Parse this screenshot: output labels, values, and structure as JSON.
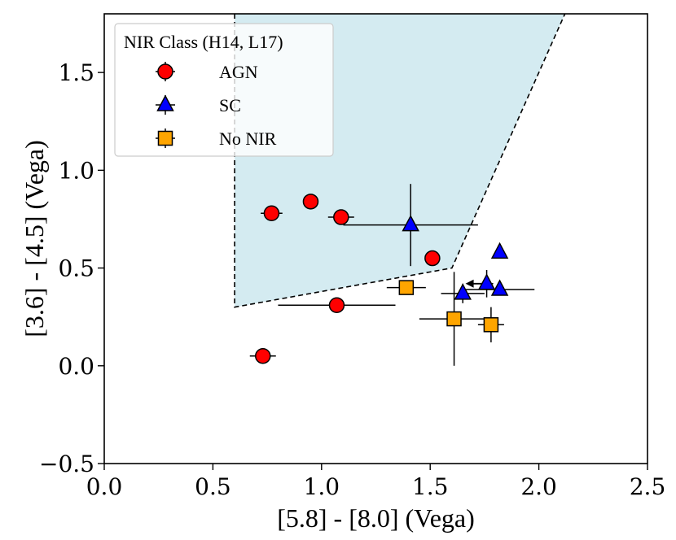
{
  "chart_data": {
    "type": "scatter",
    "title": "",
    "xlabel": "[5.8] - [8.0] (Vega)",
    "ylabel": "[3.6] - [4.5] (Vega)",
    "xlim": [
      0.0,
      2.5
    ],
    "ylim": [
      -0.5,
      1.8
    ],
    "xticks": [
      0.0,
      0.5,
      1.0,
      1.5,
      2.0,
      2.5
    ],
    "xtick_labels": [
      "0.0",
      "0.5",
      "1.0",
      "1.5",
      "2.0",
      "2.5"
    ],
    "yticks": [
      -0.5,
      0.0,
      0.5,
      1.0,
      1.5
    ],
    "ytick_labels": [
      "−0.5",
      "0.0",
      "0.5",
      "1.0",
      "1.5"
    ],
    "grid": false,
    "wedge": {
      "description": "AGN selection region (Stern et al.)",
      "fill": "#d4ebf1",
      "vertices": [
        [
          0.6,
          1.8
        ],
        [
          0.6,
          0.3
        ],
        [
          1.6,
          0.5
        ],
        [
          2.12,
          1.8
        ]
      ]
    },
    "legend": {
      "title": "NIR Class (H14, L17)",
      "placement": "top-left",
      "entries": [
        {
          "label": "AGN",
          "marker": "circle",
          "color": "#ff0000"
        },
        {
          "label": "SC",
          "marker": "triangle",
          "color": "#0000ff"
        },
        {
          "label": "No NIR",
          "marker": "square",
          "color": "#ffa500"
        }
      ]
    },
    "series": [
      {
        "name": "AGN",
        "marker": "circle",
        "color": "#ff0000",
        "points": [
          {
            "x": 0.73,
            "y": 0.05,
            "xerr": 0.06,
            "yerr": 0.0
          },
          {
            "x": 0.77,
            "y": 0.78,
            "xerr": 0.05,
            "yerr": 0.0
          },
          {
            "x": 0.95,
            "y": 0.84,
            "xerr": 0.0,
            "yerr": 0.0
          },
          {
            "x": 1.07,
            "y": 0.31,
            "xerr": 0.27,
            "yerr": 0.0
          },
          {
            "x": 1.09,
            "y": 0.76,
            "xerr": 0.06,
            "yerr": 0.02
          },
          {
            "x": 1.51,
            "y": 0.55,
            "xerr": 0.02,
            "yerr": 0.0
          }
        ]
      },
      {
        "name": "SC",
        "marker": "triangle",
        "color": "#0000ff",
        "points": [
          {
            "x": 1.41,
            "y": 0.72,
            "xerr": 0.31,
            "yerr": 0.21
          },
          {
            "x": 1.65,
            "y": 0.37,
            "xerr": 0.1,
            "yerr": 0.05
          },
          {
            "x": 1.76,
            "y": 0.42,
            "xerr": 0.03,
            "yerr": 0.07,
            "upper_limit": true
          },
          {
            "x": 1.82,
            "y": 0.58,
            "xerr": 0.02,
            "yerr": 0.03
          },
          {
            "x": 1.82,
            "y": 0.39,
            "xerr": 0.16,
            "yerr": 0.02
          }
        ]
      },
      {
        "name": "No NIR",
        "marker": "square",
        "color": "#ffa500",
        "points": [
          {
            "x": 1.39,
            "y": 0.4,
            "xerr": 0.09,
            "yerr": 0.0
          },
          {
            "x": 1.61,
            "y": 0.24,
            "xerr": 0.16,
            "yerr": 0.24
          },
          {
            "x": 1.78,
            "y": 0.21,
            "xerr": 0.06,
            "yerr": 0.09
          }
        ]
      }
    ]
  }
}
